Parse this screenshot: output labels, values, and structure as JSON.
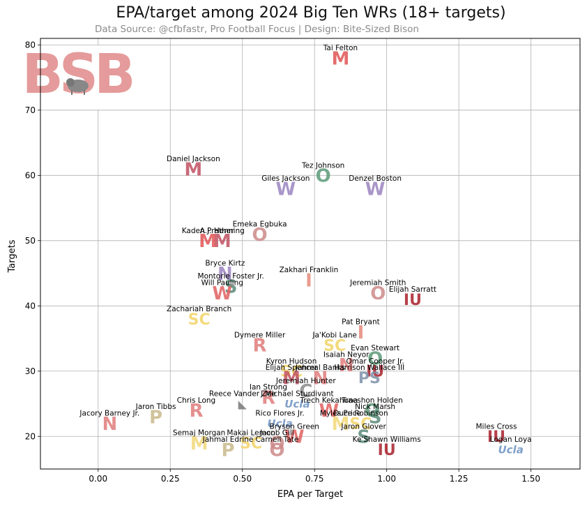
{
  "chart_data": {
    "type": "scatter",
    "title": "EPA/target among 2024 Big Ten WRs (18+ targets)",
    "subtitle": "Data Source: @cfbfastr, Pro Football Focus | Design: Bite-Sized Bison",
    "xlabel": "EPA per Target",
    "ylabel": "Targets",
    "xlim": [
      -0.2,
      1.67
    ],
    "ylim": [
      15,
      81
    ],
    "xticks": [
      0.0,
      0.25,
      0.5,
      0.75,
      1.0,
      1.25,
      1.5
    ],
    "xtick_labels": [
      "0.00",
      "0.25",
      "0.50",
      "0.75",
      "1.00",
      "1.25",
      "1.50"
    ],
    "yticks": [
      20,
      30,
      40,
      50,
      60,
      70,
      80
    ],
    "ytick_labels": [
      "20",
      "30",
      "40",
      "50",
      "60",
      "70",
      "80"
    ],
    "grid": true,
    "logo_text": "BSB",
    "team_colors": {
      "nebraska": "#e07b7b",
      "purdue": "#c9b88a",
      "maryland": "#e05555",
      "rutgers": "#e07b7b",
      "iowa": "#777777",
      "northwestern": "#9b84bf",
      "minnesota": "#c05060",
      "illinois": "#e58a7a",
      "wisconsin": "#e06060",
      "michigan_st": "#5a8a78",
      "indiana": "#a8202a",
      "ohio_st": "#cc8888",
      "penn_st": "#7d8fa8",
      "usc": "#f2d466",
      "ucla": "#6a8fc0",
      "oregon": "#5a9a78",
      "washington": "#9a84c0",
      "michigan": "#f2d878",
      "logo": "#e08a8a"
    },
    "points": [
      {
        "name": "Tai Felton",
        "x": 0.84,
        "y": 78,
        "team": "maryland",
        "mark": "M"
      },
      {
        "name": "Daniel Jackson",
        "x": 0.33,
        "y": 61,
        "team": "minnesota",
        "mark": "M"
      },
      {
        "name": "Tez Johnson",
        "x": 0.78,
        "y": 60,
        "team": "oregon",
        "mark": "O"
      },
      {
        "name": "Giles Jackson",
        "x": 0.65,
        "y": 58,
        "team": "washington",
        "mark": "W"
      },
      {
        "name": "Denzel Boston",
        "x": 0.96,
        "y": 58,
        "team": "washington",
        "mark": "W"
      },
      {
        "name": "Emeka Egbuka",
        "x": 0.56,
        "y": 51,
        "team": "ohio_st",
        "mark": "O"
      },
      {
        "name": "A.J. Henning",
        "x": 0.43,
        "y": 50,
        "team": "minnesota",
        "mark": "M"
      },
      {
        "name": "Kaden Prather",
        "x": 0.38,
        "y": 50,
        "team": "maryland",
        "mark": "M"
      },
      {
        "name": "Bryce Kirtz",
        "x": 0.44,
        "y": 45,
        "team": "northwestern",
        "mark": "N"
      },
      {
        "name": "Montorie Foster Jr.",
        "x": 0.46,
        "y": 43,
        "team": "michigan_st",
        "mark": "S"
      },
      {
        "name": "Zakhari Franklin",
        "x": 0.73,
        "y": 44,
        "team": "illinois",
        "mark": "I"
      },
      {
        "name": "Will Pauling",
        "x": 0.43,
        "y": 42,
        "team": "wisconsin",
        "mark": "W"
      },
      {
        "name": "Jeremiah Smith",
        "x": 0.97,
        "y": 42,
        "team": "ohio_st",
        "mark": "O"
      },
      {
        "name": "Elijah Sarratt",
        "x": 1.09,
        "y": 41,
        "team": "indiana",
        "mark": "IU"
      },
      {
        "name": "Zachariah Branch",
        "x": 0.35,
        "y": 38,
        "team": "usc",
        "mark": "SC"
      },
      {
        "name": "Pat Bryant",
        "x": 0.91,
        "y": 36,
        "team": "illinois",
        "mark": "I"
      },
      {
        "name": "Ja'Kobi Lane",
        "x": 0.82,
        "y": 34,
        "team": "usc",
        "mark": "SC"
      },
      {
        "name": "Dymere Miller",
        "x": 0.56,
        "y": 34,
        "team": "rutgers",
        "mark": "R"
      },
      {
        "name": "Evan Stewart",
        "x": 0.96,
        "y": 32,
        "team": "oregon",
        "mark": "O"
      },
      {
        "name": "Isaiah Neyor",
        "x": 0.86,
        "y": 31,
        "team": "nebraska",
        "mark": "N"
      },
      {
        "name": "Omar Cooper Jr.",
        "x": 0.96,
        "y": 30,
        "team": "indiana",
        "mark": "IU"
      },
      {
        "name": "Kyron Hudson",
        "x": 0.67,
        "y": 30,
        "team": "usc",
        "mark": "SC"
      },
      {
        "name": "Elijah Spencer",
        "x": 0.67,
        "y": 29,
        "team": "minnesota",
        "mark": "M"
      },
      {
        "name": "Jahmal Banks",
        "x": 0.77,
        "y": 29,
        "team": "nebraska",
        "mark": "N"
      },
      {
        "name": "Harrison Wallace III",
        "x": 0.94,
        "y": 29,
        "team": "penn_st",
        "mark": "PS"
      },
      {
        "name": "Jeremiah Hunter",
        "x": 0.72,
        "y": 27,
        "team": "california",
        "mark": "C"
      },
      {
        "name": "Ian Strong",
        "x": 0.59,
        "y": 26,
        "team": "rutgers",
        "mark": "R"
      },
      {
        "name": "J.Michael Sturdivant",
        "x": 0.69,
        "y": 25,
        "team": "ucla",
        "mark": "Ucla"
      },
      {
        "name": "Reece Vander Zee",
        "x": 0.5,
        "y": 25,
        "team": "iowa",
        "mark": "Hawk"
      },
      {
        "name": "Trech Kekahuna",
        "x": 0.8,
        "y": 24,
        "team": "wisconsin",
        "mark": "W"
      },
      {
        "name": "Traeshon Holden",
        "x": 0.95,
        "y": 24,
        "team": "oregon",
        "mark": "O"
      },
      {
        "name": "Jaron Tibbs",
        "x": 0.2,
        "y": 23,
        "team": "purdue",
        "mark": "P"
      },
      {
        "name": "Chris Long",
        "x": 0.34,
        "y": 24,
        "team": "rutgers",
        "mark": "R"
      },
      {
        "name": "Jacory Barney Jr.",
        "x": 0.04,
        "y": 22,
        "team": "nebraska",
        "mark": "N"
      },
      {
        "name": "Rico Flores Jr.",
        "x": 0.63,
        "y": 22,
        "team": "ucla",
        "mark": "Ucla"
      },
      {
        "name": "Myles Price",
        "x": 0.84,
        "y": 22,
        "team": "michigan",
        "mark": "M"
      },
      {
        "name": "Nick Marsh",
        "x": 0.96,
        "y": 23,
        "team": "michigan_st",
        "mark": "S"
      },
      {
        "name": "Duce Robinson",
        "x": 0.91,
        "y": 22,
        "team": "usc",
        "mark": "SC"
      },
      {
        "name": "Bryson Green",
        "x": 0.68,
        "y": 20,
        "team": "wisconsin",
        "mark": "W"
      },
      {
        "name": "Semaj Morgan",
        "x": 0.35,
        "y": 19,
        "team": "michigan",
        "mark": "M"
      },
      {
        "name": "Jacob Gill",
        "x": 0.62,
        "y": 19,
        "team": "ohio_st",
        "mark": "O"
      },
      {
        "name": "Jaron Glover",
        "x": 0.92,
        "y": 20,
        "team": "michigan_st",
        "mark": "S"
      },
      {
        "name": "Makai Lemon",
        "x": 0.53,
        "y": 19,
        "team": "usc",
        "mark": "SC"
      },
      {
        "name": "Carnell Tate",
        "x": 0.62,
        "y": 18,
        "team": "ohio_st",
        "mark": "O"
      },
      {
        "name": "Miles Cross",
        "x": 1.38,
        "y": 20,
        "team": "indiana",
        "mark": "IU"
      },
      {
        "name": "Jahmal Edrine",
        "x": 0.45,
        "y": 18,
        "team": "purdue",
        "mark": "P"
      },
      {
        "name": "Ke'Shawn Williams",
        "x": 1.0,
        "y": 18,
        "team": "indiana",
        "mark": "IU"
      },
      {
        "name": "Logan Loya",
        "x": 1.43,
        "y": 18,
        "team": "ucla",
        "mark": "Ucla"
      }
    ]
  }
}
